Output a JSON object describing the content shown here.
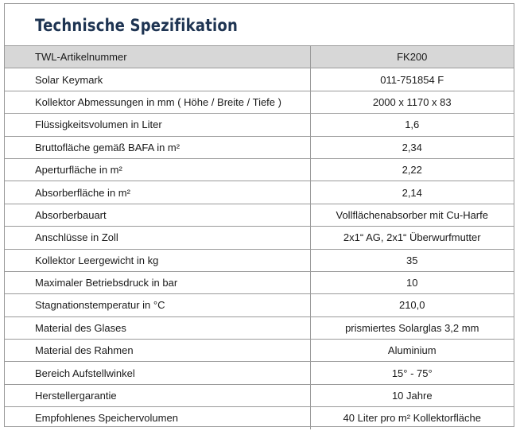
{
  "title": "Technische Spezifikation",
  "header": {
    "label": "TWL-Artikelnummer",
    "value": "FK200"
  },
  "rows": [
    {
      "label": "Solar Keymark",
      "value": "011-751854 F"
    },
    {
      "label": "Kollektor Abmessungen in mm ( Höhe / Breite / Tiefe )",
      "value": "2000 x 1170 x 83"
    },
    {
      "label": "Flüssigkeitsvolumen in Liter",
      "value": "1,6"
    },
    {
      "label": "Bruttofläche gemäß BAFA in m²",
      "value": "2,34"
    },
    {
      "label": "Aperturfläche in m²",
      "value": "2,22"
    },
    {
      "label": "Absorberfläche in m²",
      "value": "2,14"
    },
    {
      "label": "Absorberbauart",
      "value": "Vollflächenabsorber mit Cu-Harfe"
    },
    {
      "label": "Anschlüsse in Zoll",
      "value": "2x1“ AG, 2x1“ Überwurfmutter"
    },
    {
      "label": "Kollektor Leergewicht in kg",
      "value": "35"
    },
    {
      "label": "Maximaler Betriebsdruck in bar",
      "value": "10"
    },
    {
      "label": "Stagnationstemperatur in °C",
      "value": "210,0"
    },
    {
      "label": "Material des Glases",
      "value": "prismiertes Solarglas 3,2 mm"
    },
    {
      "label": "Material des Rahmen",
      "value": "Aluminium"
    },
    {
      "label": "Bereich Aufstellwinkel",
      "value": "15° - 75°"
    },
    {
      "label": "Herstellergarantie",
      "value": "10 Jahre"
    },
    {
      "label": "Empfohlenes Speichervolumen",
      "value": "40 Liter pro m² Kollektorfläche"
    }
  ]
}
